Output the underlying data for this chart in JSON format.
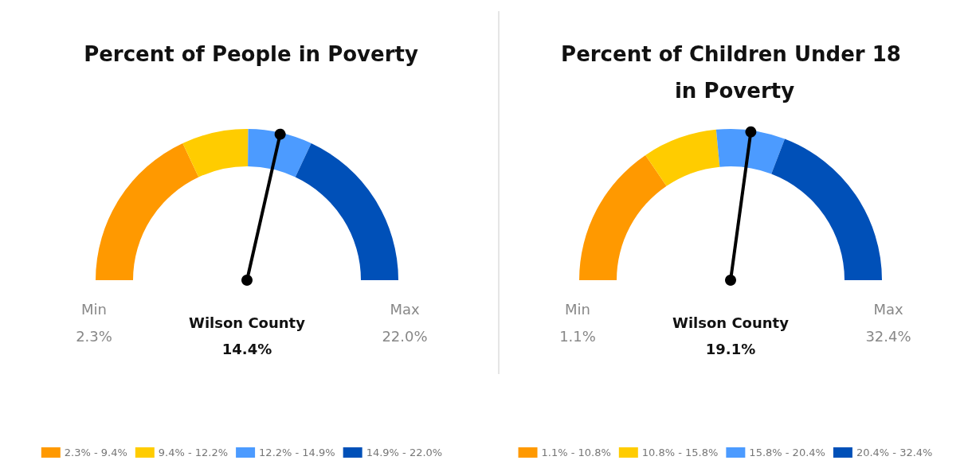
{
  "chart_data": [
    {
      "type": "donut",
      "title": "Percent of People in Poverty",
      "categories": [
        "2.3% - 9.4%",
        "9.4% - 12.2%",
        "12.2% - 14.9%",
        "14.9% - 22.0%"
      ],
      "values": [
        36.04,
        14.21,
        13.71,
        36.04
      ],
      "colors": [
        "#ff9900",
        "#ffcc00",
        "#4c9bff",
        "#0050b8"
      ],
      "needle": "12.2% - 14.9%",
      "annotations": [
        "Min",
        "2.3%",
        "Max",
        "22.0%",
        "Wilson County",
        "14.4%"
      ],
      "legend": "bottom"
    },
    {
      "type": "donut",
      "title": "Percent of Children Under 18 in Poverty",
      "categories": [
        "1.1% - 10.8%",
        "10.8% - 15.8%",
        "15.8% - 20.4%",
        "20.4% - 32.4%"
      ],
      "values": [
        30.99,
        15.97,
        14.7,
        38.34
      ],
      "colors": [
        "#ff9900",
        "#ffcc00",
        "#4c9bff",
        "#0050b8"
      ],
      "needle": "15.8% - 20.4%",
      "annotations": [
        "Min",
        "1.1%",
        "Max",
        "32.4%",
        "Wilson County",
        "19.1%"
      ],
      "legend": "bottom"
    }
  ]
}
